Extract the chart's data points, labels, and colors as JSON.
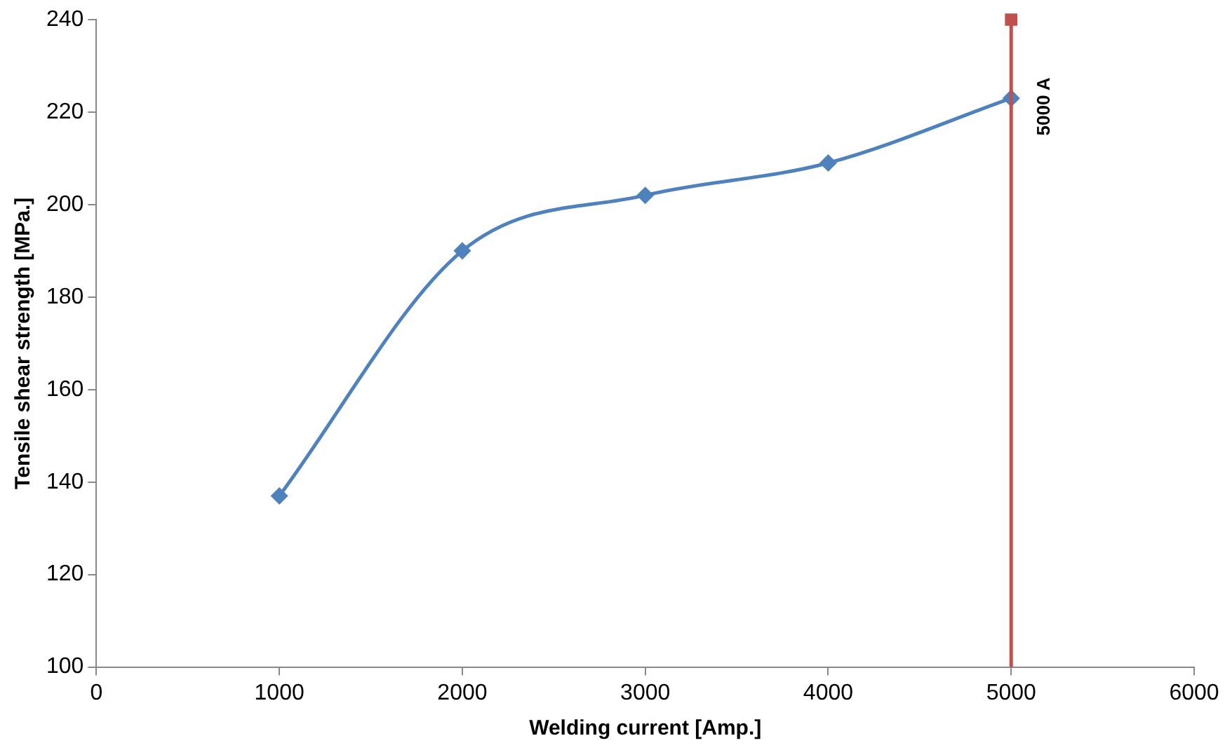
{
  "chart_data": {
    "type": "line",
    "xlabel": "Welding current [Amp.]",
    "ylabel": "Tensile shear strength [MPa.]",
    "x": [
      1000,
      2000,
      3000,
      4000,
      5000
    ],
    "series": [
      {
        "color": "#4f81bd",
        "values": [
          137,
          190,
          202,
          209,
          223
        ]
      },
      {
        "type": "scatter",
        "x": [
          5000
        ],
        "color": "#c0504d",
        "marker": "square",
        "values": [
          240
        ]
      }
    ],
    "xlim": [
      0,
      6000
    ],
    "xticks": [
      0,
      1000,
      2000,
      3000,
      4000,
      5000,
      6000
    ],
    "ylim": [
      100,
      240
    ],
    "yticks": [
      100,
      120,
      140,
      160,
      180,
      200,
      220,
      240
    ],
    "ref_lines": [
      {
        "axis": "x",
        "value": 5000,
        "label": "5000 A",
        "color": "#c0504d"
      }
    ],
    "grid": false,
    "legend": false,
    "marker": "diamond",
    "line_style": "solid"
  }
}
